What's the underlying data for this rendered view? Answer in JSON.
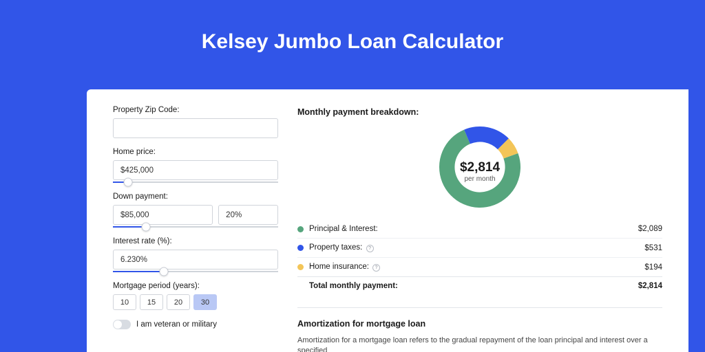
{
  "header": {
    "title": "Kelsey Jumbo Loan Calculator"
  },
  "colors": {
    "page_bg": "#3155e8",
    "card_bg": "#ffffff",
    "shadow_bg": "#2437a0",
    "input_border": "#d0d4da",
    "slider_fill": "#3155e8",
    "period_active_bg": "#b9c8f5"
  },
  "form": {
    "zip": {
      "label": "Property Zip Code:",
      "value": ""
    },
    "home_price": {
      "label": "Home price:",
      "value": "$425,000",
      "slider_pct": 9
    },
    "down_payment": {
      "label": "Down payment:",
      "amount": "$85,000",
      "percent": "20%",
      "slider_pct": 20
    },
    "interest_rate": {
      "label": "Interest rate (%):",
      "value": "6.230%",
      "slider_pct": 31
    },
    "mortgage_period": {
      "label": "Mortgage period (years):",
      "options": [
        "10",
        "15",
        "20",
        "30"
      ],
      "active_index": 3
    },
    "veteran": {
      "label": "I am veteran or military",
      "checked": false
    }
  },
  "breakdown": {
    "title": "Monthly payment breakdown:",
    "donut": {
      "value": "$2,814",
      "sub": "per month",
      "size": 118,
      "inner_radius_ratio": 0.62,
      "slices": [
        {
          "key": "principal_interest",
          "value": 2089,
          "color": "#56a57d"
        },
        {
          "key": "property_taxes",
          "value": 531,
          "color": "#3155e8"
        },
        {
          "key": "home_insurance",
          "value": 194,
          "color": "#f3c558"
        }
      ],
      "start_angle_deg": -20
    },
    "rows": [
      {
        "swatch": "#56a57d",
        "label": "Principal & Interest:",
        "has_info": false,
        "value": "$2,089"
      },
      {
        "swatch": "#3155e8",
        "label": "Property taxes:",
        "has_info": true,
        "value": "$531"
      },
      {
        "swatch": "#f3c558",
        "label": "Home insurance:",
        "has_info": true,
        "value": "$194"
      }
    ],
    "total": {
      "label": "Total monthly payment:",
      "value": "$2,814"
    }
  },
  "amortization": {
    "title": "Amortization for mortgage loan",
    "body": "Amortization for a mortgage loan refers to the gradual repayment of the loan principal and interest over a specified"
  }
}
